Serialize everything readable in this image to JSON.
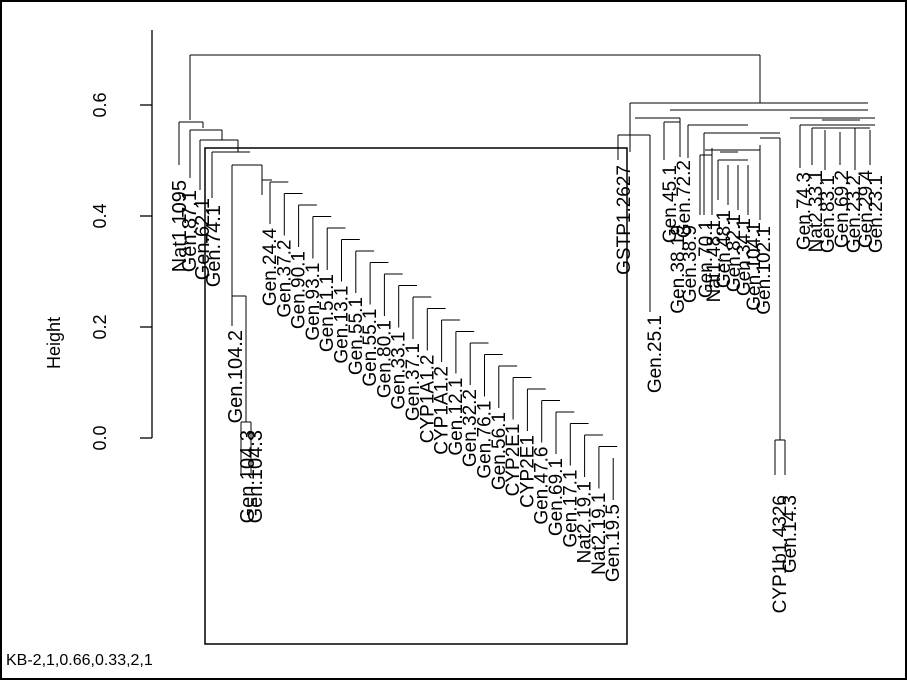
{
  "chart_data": {
    "type": "dendrogram",
    "ylabel": "Height",
    "ylim": [
      0,
      0.66
    ],
    "yticks": [
      0.0,
      0.2,
      0.4,
      0.6
    ],
    "ytick_labels": [
      "0.0",
      "0.2",
      "0.4",
      "0.6"
    ],
    "cluster_box": true,
    "leaf_labels_left": [
      "Nat1.1095",
      "Gen.87.1",
      "Gen.62.1",
      "Gen.74.1",
      "Gen.104.2",
      "Gen.104.3",
      "Gen.104.3"
    ],
    "leaf_labels_diagonal": [
      "Gen.24.4",
      "Gen.37.2",
      "Gen.90.1",
      "Gen.93.1",
      "Gen.51.1",
      "Gen.13.1",
      "Gen.55.1",
      "Gen.55.1",
      "Gen.80.1",
      "Gen.33.1",
      "Gen.37.1",
      "CYP1A1.2",
      "CYP1A1.2",
      "Gen.12.1",
      "Gen.32.2",
      "Gen.76.1",
      "Gen.56.1",
      "CYP2E1",
      "CYP2E1",
      "Gen.47.6",
      "Gen.69.1",
      "Gen.17.1",
      "Nat2.19.1",
      "Nat2.19.1",
      "Gen.19.5"
    ],
    "leaf_labels_right": [
      "GSTP1.2627",
      "Gen.25.1",
      "Gen.45.1",
      "Gen.72.2",
      "Gen.38.19",
      "Gen.38.9",
      "Gen.70.1",
      "Nat1.48.1",
      "Gen.48.1",
      "Gen.82.1",
      "Gen.34.1",
      "Gen.104.1",
      "Gen.102.1",
      "CYP1b1.4326",
      "Gen.14.3",
      "Gen.74.3",
      "Nat2.33.1",
      "Gen.83.1",
      "Gen.69.2",
      "Gen.23.2",
      "Gen.29.4",
      "Gen.23.1"
    ]
  },
  "caption": "KB-2,1,0.66,0.33,2,1"
}
